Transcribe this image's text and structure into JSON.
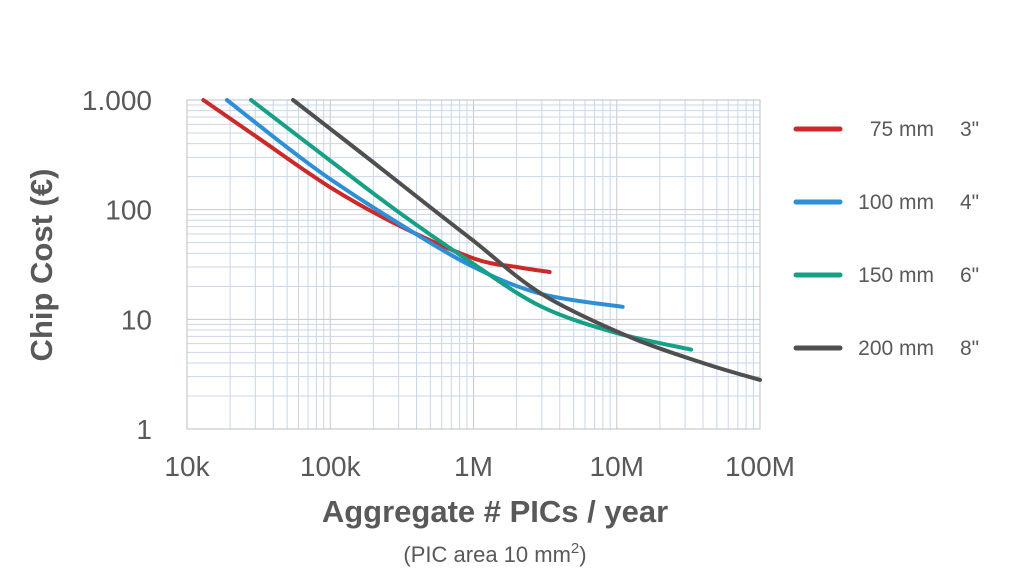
{
  "chart_data": {
    "type": "line",
    "xscale": "log",
    "yscale": "log",
    "xlim": [
      10000,
      100000000
    ],
    "ylim": [
      1,
      1000
    ],
    "xticks": [
      {
        "v": 10000,
        "label": "10k"
      },
      {
        "v": 100000,
        "label": "100k"
      },
      {
        "v": 1000000,
        "label": "1M"
      },
      {
        "v": 10000000,
        "label": "10M"
      },
      {
        "v": 100000000,
        "label": "100M"
      }
    ],
    "yticks": [
      {
        "v": 1,
        "label": "1"
      },
      {
        "v": 10,
        "label": "10"
      },
      {
        "v": 100,
        "label": "100"
      },
      {
        "v": 1000,
        "label": "1.000"
      }
    ],
    "xlabel": "Aggregate # PICs / year",
    "xsublabel_main": "(PIC area 10 mm",
    "xsublabel_sup": "2",
    "xsublabel_end": ")",
    "ylabel": "Chip Cost (€)",
    "grid": true,
    "legend_position": "right",
    "series": [
      {
        "name": "75 mm",
        "inch": "3\"",
        "color": "#cc2a2a",
        "points": [
          [
            13000,
            1000
          ],
          [
            30000,
            470
          ],
          [
            100000,
            160
          ],
          [
            300000,
            72
          ],
          [
            1000000,
            36
          ],
          [
            2000000,
            30
          ],
          [
            3400000,
            27
          ]
        ]
      },
      {
        "name": "100 mm",
        "inch": "4\"",
        "color": "#2e8fd6",
        "points": [
          [
            19000,
            1000
          ],
          [
            50000,
            370
          ],
          [
            100000,
            190
          ],
          [
            300000,
            75
          ],
          [
            1000000,
            30
          ],
          [
            3000000,
            17
          ],
          [
            11000000,
            13
          ]
        ]
      },
      {
        "name": "150 mm",
        "inch": "6\"",
        "color": "#17a085",
        "points": [
          [
            28000,
            1000
          ],
          [
            100000,
            280
          ],
          [
            300000,
            95
          ],
          [
            1000000,
            32
          ],
          [
            3000000,
            13
          ],
          [
            10000000,
            7.5
          ],
          [
            33000000,
            5.3
          ]
        ]
      },
      {
        "name": "200 mm",
        "inch": "8\"",
        "color": "#4f4f4f",
        "points": [
          [
            55000,
            1000
          ],
          [
            200000,
            270
          ],
          [
            500000,
            105
          ],
          [
            1000000,
            52
          ],
          [
            3000000,
            17
          ],
          [
            12000000,
            7
          ],
          [
            40000000,
            4
          ],
          [
            100000000,
            2.8
          ]
        ]
      }
    ]
  }
}
